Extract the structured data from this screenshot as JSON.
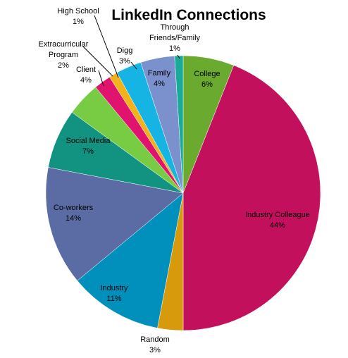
{
  "chart_data": {
    "type": "pie",
    "title": "LinkedIn Connections",
    "start_angle_deg": 0,
    "direction": "clockwise",
    "slices": [
      {
        "label": "College",
        "value": 6,
        "value_label": "6%",
        "color": "#6aaa2e"
      },
      {
        "label": "Industry Colleague",
        "value": 44,
        "value_label": "44%",
        "color": "#c2105c"
      },
      {
        "label": "Random",
        "value": 3,
        "value_label": "3%",
        "color": "#d69a0c"
      },
      {
        "label": "Industry",
        "value": 11,
        "value_label": "11%",
        "color": "#0090bb"
      },
      {
        "label": "Co-workers",
        "value": 14,
        "value_label": "14%",
        "color": "#5b6ba3"
      },
      {
        "label": "Social Media",
        "value": 7,
        "value_label": "7%",
        "color": "#129382"
      },
      {
        "label": "Client",
        "value": 4,
        "value_label": "4%",
        "color": "#77cc44"
      },
      {
        "label": "Extracurricular Program",
        "value": 2,
        "value_label": "2%",
        "color": "#e0136e"
      },
      {
        "label": "High School",
        "value": 1,
        "value_label": "1%",
        "color": "#f4b21a"
      },
      {
        "label": "Digg",
        "value": 3,
        "value_label": "3%",
        "color": "#16b4e3"
      },
      {
        "label": "Family",
        "value": 4,
        "value_label": "4%",
        "color": "#7b91ce"
      },
      {
        "label": "Through Friends/Family",
        "value": 1,
        "value_label": "1%",
        "color": "#1aaa9a"
      }
    ],
    "legend": "none"
  }
}
